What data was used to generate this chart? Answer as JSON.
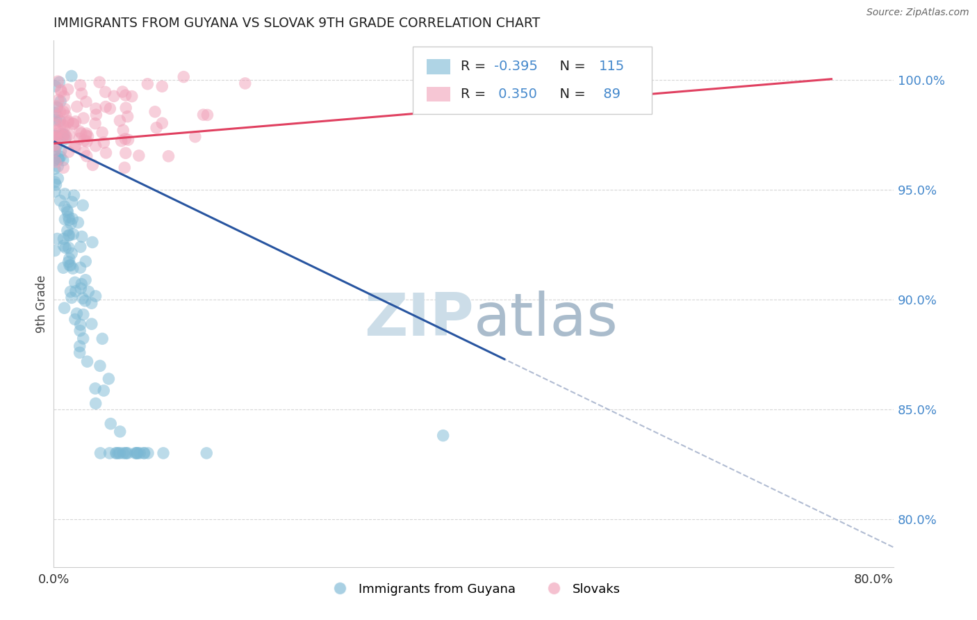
{
  "title": "IMMIGRANTS FROM GUYANA VS SLOVAK 9TH GRADE CORRELATION CHART",
  "source": "Source: ZipAtlas.com",
  "ylabel": "9th Grade",
  "y_ticks": [
    0.8,
    0.85,
    0.9,
    0.95,
    1.0
  ],
  "y_tick_labels": [
    "80.0%",
    "85.0%",
    "90.0%",
    "95.0%",
    "100.0%"
  ],
  "x_tick_positions": [
    0.0,
    0.2,
    0.4,
    0.6,
    0.8
  ],
  "x_tick_labels": [
    "0.0%",
    "",
    "",
    "",
    "80.0%"
  ],
  "xlim": [
    0.0,
    0.82
  ],
  "ylim": [
    0.778,
    1.018
  ],
  "blue_label": "Immigrants from Guyana",
  "pink_label": "Slovaks",
  "blue_R": -0.395,
  "blue_N": 115,
  "pink_R": 0.35,
  "pink_N": 89,
  "watermark_zip": "ZIP",
  "watermark_atlas": "atlas",
  "watermark_zip_color": "#ccdde8",
  "watermark_atlas_color": "#aabccc",
  "blue_dot_color": "#7bb8d4",
  "pink_dot_color": "#f0a0b8",
  "blue_line_color": "#2855a0",
  "pink_line_color": "#e04060",
  "grid_color": "#cccccc",
  "title_color": "#222222",
  "right_axis_color": "#4488cc",
  "legend_R_color": "#000000",
  "legend_blue_val_color": "#4488cc",
  "legend_pink_val_color": "#4488cc",
  "legend_N_color": "#4488cc",
  "blue_seed": 12,
  "pink_seed": 99
}
